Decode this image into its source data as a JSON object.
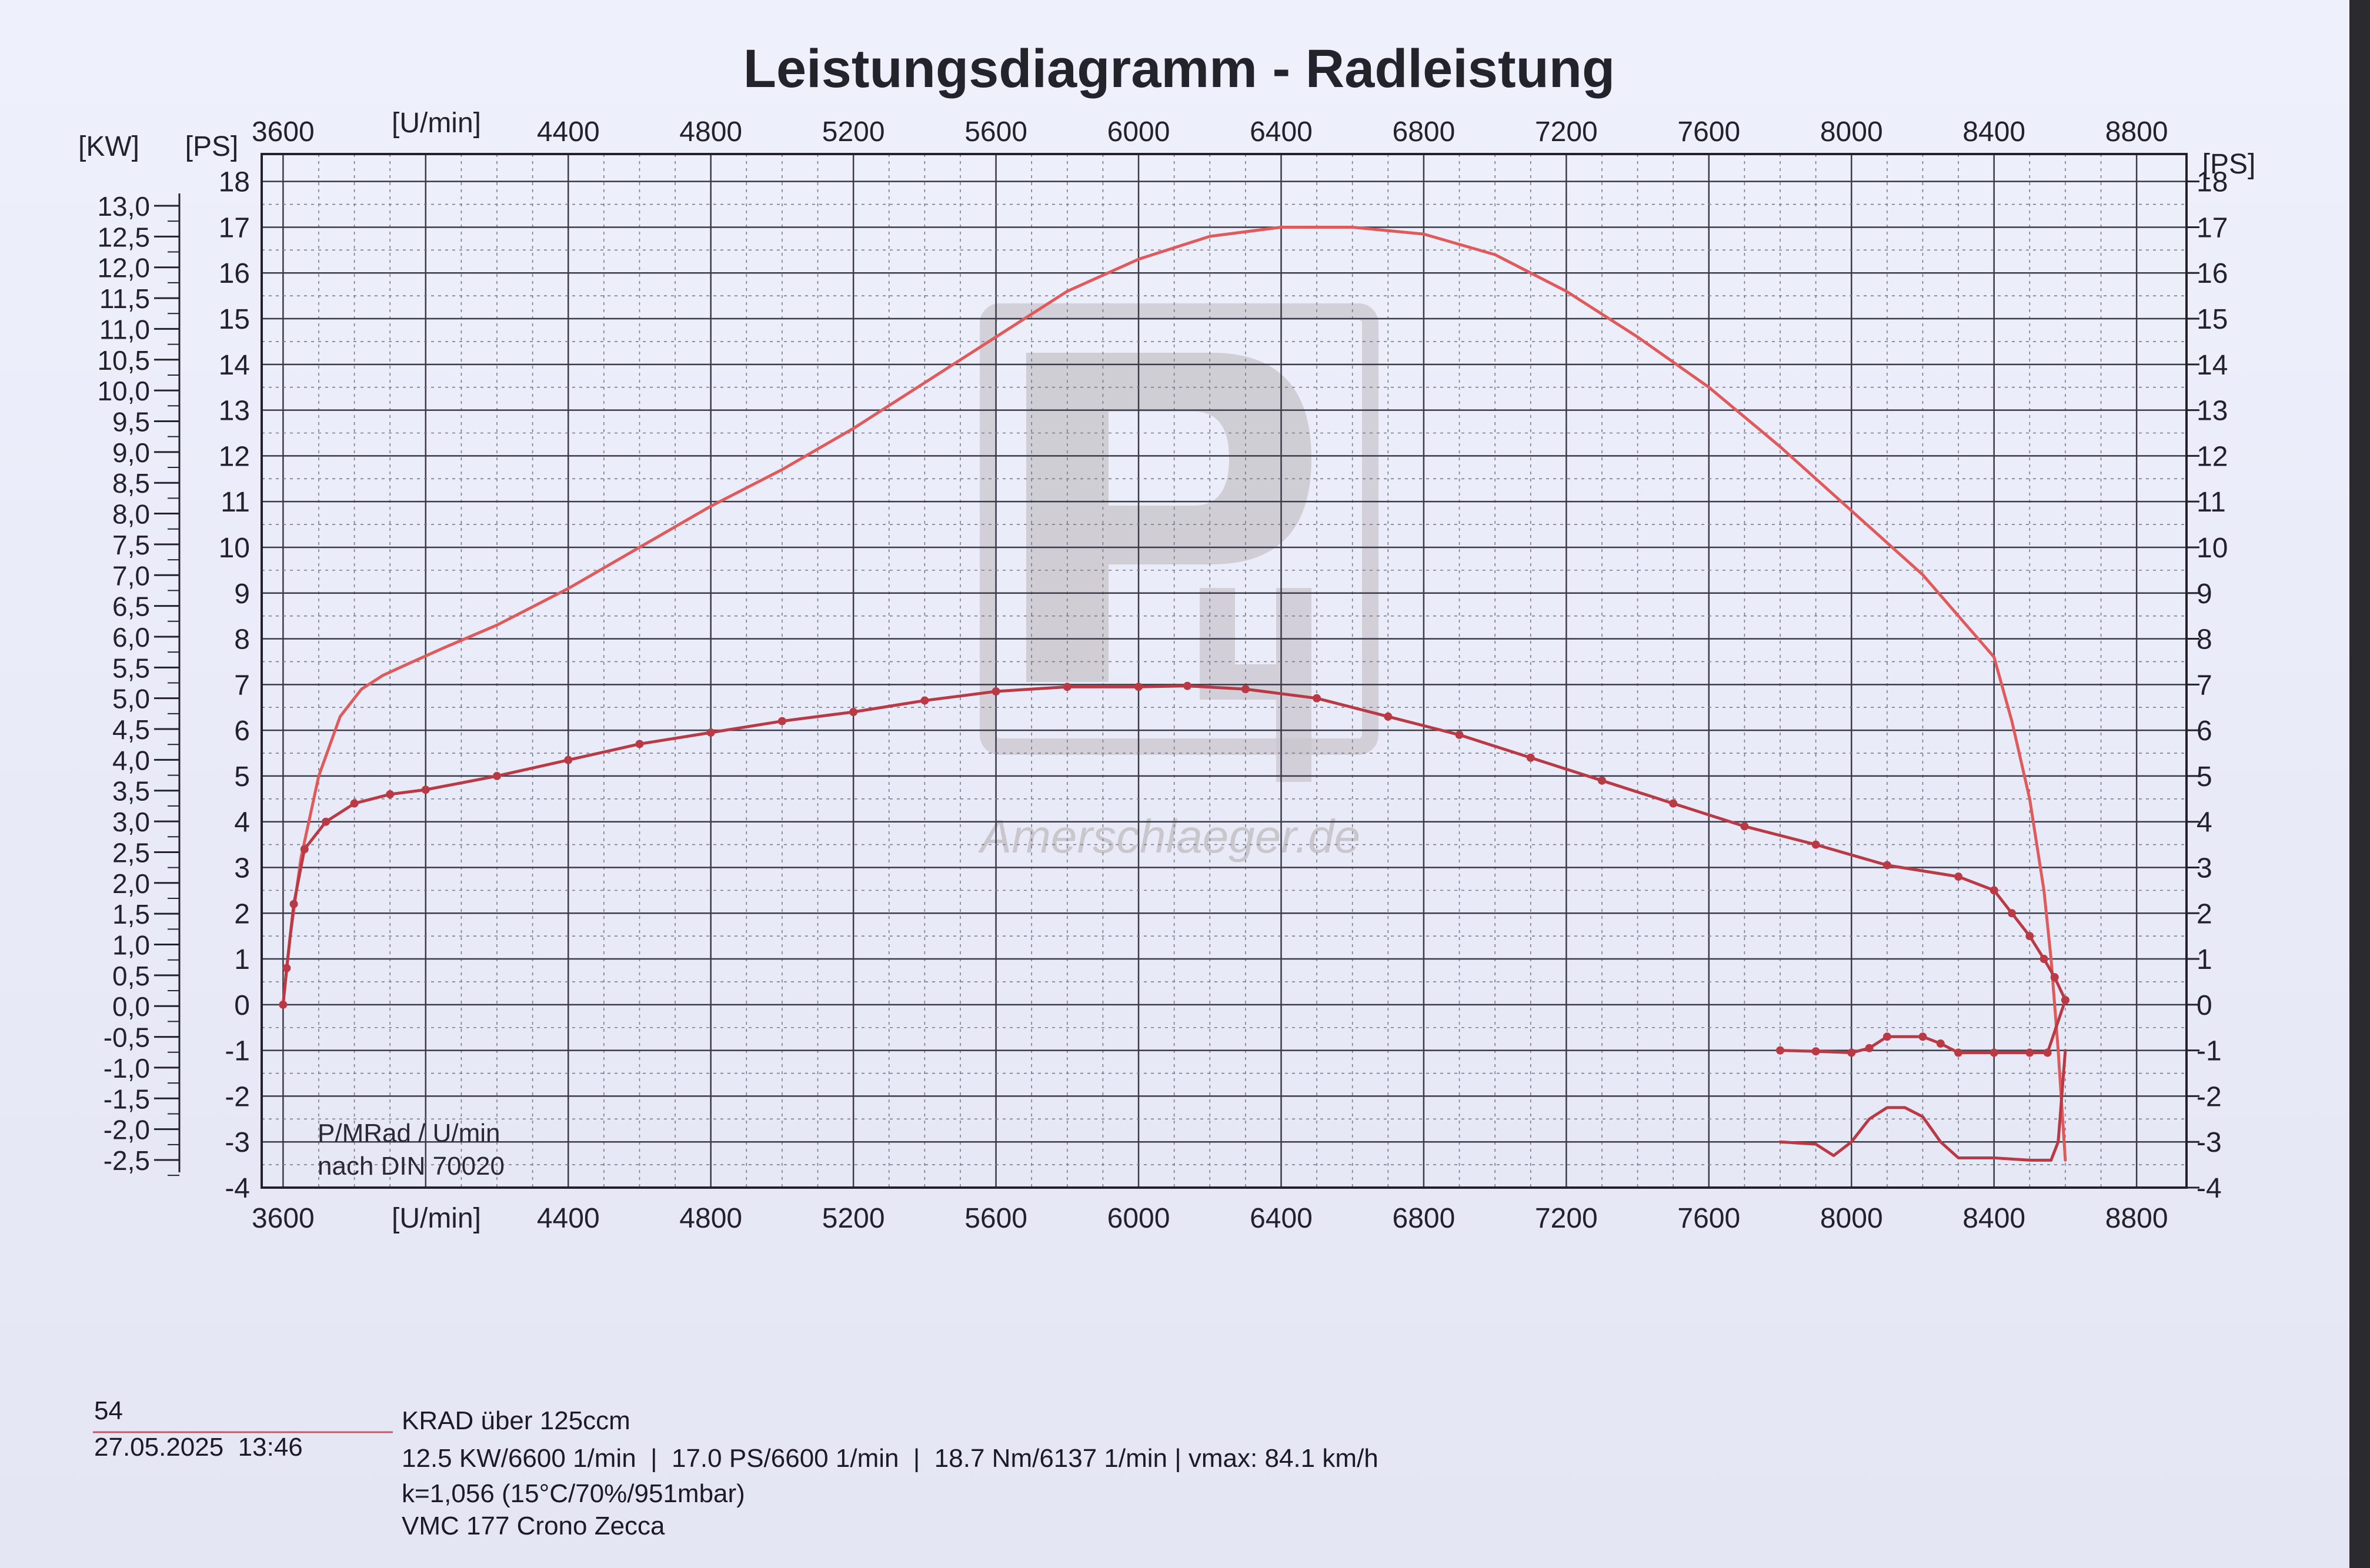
{
  "chart_data": {
    "type": "line",
    "title": "Leistungsdiagramm - Radleistung",
    "x_axis": {
      "unit_label": "[U/min]",
      "ticks": [
        3600,
        4000,
        4400,
        4800,
        5200,
        5600,
        6000,
        6400,
        6800,
        7200,
        7600,
        8000,
        8400,
        8800
      ],
      "top_labels": [
        "3600",
        "4400",
        "4800",
        "5200",
        "5600",
        "6000",
        "6400",
        "6800",
        "7200",
        "7600",
        "8000",
        "8400",
        "8800"
      ],
      "bottom_labels": [
        "3600",
        "4400",
        "4800",
        "5200",
        "5600",
        "6000",
        "6400",
        "6800",
        "7200",
        "7600",
        "8000",
        "8400",
        "8800"
      ],
      "range": [
        3540,
        8940
      ]
    },
    "y_axis_kw": {
      "unit_label": "[KW]",
      "ticks": [
        "13,0",
        "12,5",
        "12,0",
        "11,5",
        "11,0",
        "10,5",
        "10,0",
        "9,5",
        "9,0",
        "8,5",
        "8,0",
        "7,5",
        "7,0",
        "6,5",
        "6,0",
        "5,5",
        "5,0",
        "4,5",
        "4,0",
        "3,5",
        "3,0",
        "2,5",
        "2,0",
        "1,5",
        "1,0",
        "0,5",
        "0,0",
        "-0,5",
        "-1,0",
        "-1,5",
        "-2,0",
        "-2,5"
      ]
    },
    "y_axis_ps_left": {
      "unit_label": "[PS]",
      "ticks": [
        "18",
        "17",
        "16",
        "15",
        "14",
        "13",
        "12",
        "11",
        "10",
        "9",
        "8",
        "7",
        "6",
        "5",
        "4",
        "3",
        "2",
        "1",
        "0",
        "-1",
        "-2",
        "-3",
        "-4"
      ],
      "range": [
        -4,
        18.6
      ]
    },
    "y_axis_ps_right": {
      "unit_label": "[PS]",
      "ticks": [
        "18",
        "17",
        "16",
        "15",
        "14",
        "13",
        "12",
        "11",
        "10",
        "9",
        "8",
        "7",
        "6",
        "5",
        "4",
        "3",
        "2",
        "1",
        "0",
        "-1",
        "-2",
        "-3",
        "-4"
      ]
    },
    "annotation": [
      "P/MRad / U/min",
      "nach DIN 70020"
    ],
    "series": [
      {
        "name": "P",
        "color": "#e05a5c",
        "markers": false,
        "x": [
          3600,
          3620,
          3650,
          3700,
          3760,
          3820,
          3880,
          3950,
          4050,
          4200,
          4400,
          4600,
          4800,
          5000,
          5200,
          5400,
          5600,
          5800,
          6000,
          6200,
          6400,
          6600,
          6800,
          7000,
          7200,
          7400,
          7600,
          7800,
          8000,
          8200,
          8400,
          8450,
          8500,
          8540,
          8560,
          8580,
          8600
        ],
        "y": [
          0,
          1.5,
          3.2,
          5.0,
          6.3,
          6.9,
          7.2,
          7.45,
          7.8,
          8.3,
          9.1,
          10.0,
          10.9,
          11.7,
          12.6,
          13.6,
          14.6,
          15.6,
          16.3,
          16.8,
          17.0,
          17.0,
          16.85,
          16.4,
          15.6,
          14.6,
          13.5,
          12.2,
          10.8,
          9.4,
          7.6,
          6.2,
          4.5,
          2.5,
          1.0,
          -1.0,
          -3.4
        ]
      },
      {
        "name": "MRad",
        "color": "#b93a44",
        "markers": true,
        "x": [
          3600,
          3610,
          3630,
          3660,
          3720,
          3800,
          3900,
          4000,
          4200,
          4400,
          4600,
          4800,
          5000,
          5200,
          5400,
          5600,
          5800,
          6000,
          6137,
          6300,
          6500,
          6700,
          6900,
          7100,
          7300,
          7500,
          7700,
          7900,
          8100,
          8300,
          8400,
          8450,
          8500,
          8540,
          8570,
          8600
        ],
        "y": [
          0,
          0.8,
          2.2,
          3.4,
          4.0,
          4.4,
          4.6,
          4.7,
          5.0,
          5.35,
          5.7,
          5.95,
          6.2,
          6.4,
          6.65,
          6.85,
          6.95,
          6.95,
          6.97,
          6.9,
          6.7,
          6.3,
          5.9,
          5.4,
          4.9,
          4.4,
          3.9,
          3.5,
          3.05,
          2.8,
          2.5,
          2.0,
          1.5,
          1.0,
          0.6,
          0.1
        ]
      },
      {
        "name": "MRad Verlust",
        "color": "#b93a44",
        "markers": true,
        "x": [
          7800,
          7900,
          8000,
          8050,
          8100,
          8200,
          8250,
          8300,
          8400,
          8500,
          8550,
          8600
        ],
        "y": [
          -1.0,
          -1.02,
          -1.05,
          -0.95,
          -0.7,
          -0.7,
          -0.85,
          -1.05,
          -1.05,
          -1.05,
          -1.05,
          0.1
        ]
      },
      {
        "name": "P Verlust",
        "color": "#b93a44",
        "markers": false,
        "x": [
          7800,
          7900,
          7950,
          8000,
          8050,
          8100,
          8150,
          8200,
          8250,
          8300,
          8400,
          8500,
          8560,
          8580,
          8600
        ],
        "y": [
          -3.0,
          -3.05,
          -3.3,
          -3.0,
          -2.5,
          -2.25,
          -2.25,
          -2.45,
          -3.0,
          -3.35,
          -3.35,
          -3.4,
          -3.4,
          -3.0,
          -1.0
        ]
      }
    ]
  },
  "watermark": {
    "logo_color": "#c9c6cc",
    "text": "Amerschlaeger.de"
  },
  "footer": {
    "number": "54",
    "datetime": "27.05.2025  13:46",
    "lines": [
      "KRAD über 125ccm",
      "12.5 KW/6600 1/min  |  17.0 PS/6600 1/min  |  18.7 Nm/6137 1/min | vmax: 84.1 km/h",
      "k=1,056 (15°C/70%/951mbar)",
      "VMC 177 Crono Zecca"
    ]
  }
}
